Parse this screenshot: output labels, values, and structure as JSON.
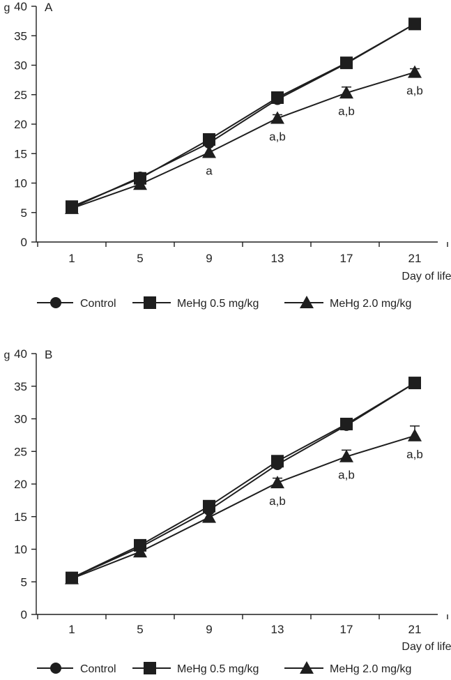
{
  "chart_data": [
    {
      "type": "line",
      "panel_label": "A",
      "ylabel": "g",
      "xlabel": "Day of life",
      "categories": [
        "1",
        "5",
        "9",
        "13",
        "17",
        "21"
      ],
      "ylim": [
        0,
        40
      ],
      "yticks": [
        0,
        5,
        10,
        15,
        20,
        25,
        30,
        35,
        40
      ],
      "series": [
        {
          "name": "Control",
          "marker": "circle",
          "values": [
            5.8,
            11.0,
            16.8,
            24.2,
            30.3,
            37.0
          ],
          "errors": [
            0,
            0,
            0,
            0,
            0,
            0
          ]
        },
        {
          "name": "MeHg 0.5 mg/kg",
          "marker": "square",
          "values": [
            6.0,
            10.8,
            17.4,
            24.5,
            30.4,
            37.0
          ],
          "errors": [
            0,
            0,
            0,
            0,
            0,
            0
          ]
        },
        {
          "name": "MeHg 2.0 mg/kg",
          "marker": "triangle",
          "values": [
            5.7,
            9.8,
            15.2,
            21.0,
            25.3,
            28.8
          ],
          "errors": [
            0,
            0,
            0,
            0.6,
            1.0,
            0.6
          ]
        }
      ],
      "annotations": [
        {
          "x": "9",
          "text": "a"
        },
        {
          "x": "13",
          "text": "a,b"
        },
        {
          "x": "17",
          "text": "a,b"
        },
        {
          "x": "21",
          "text": "a,b"
        }
      ]
    },
    {
      "type": "line",
      "panel_label": "B",
      "ylabel": "g",
      "xlabel": "Day of life",
      "categories": [
        "1",
        "5",
        "9",
        "13",
        "17",
        "21"
      ],
      "ylim": [
        0,
        40
      ],
      "yticks": [
        0,
        5,
        10,
        15,
        20,
        25,
        30,
        35,
        40
      ],
      "series": [
        {
          "name": "Control",
          "marker": "circle",
          "values": [
            5.6,
            10.3,
            16.0,
            23.0,
            29.0,
            35.5
          ],
          "errors": [
            0,
            0,
            0,
            0,
            0,
            0
          ]
        },
        {
          "name": "MeHg 0.5 mg/kg",
          "marker": "square",
          "values": [
            5.6,
            10.6,
            16.6,
            23.5,
            29.2,
            35.5
          ],
          "errors": [
            0,
            0,
            0,
            0,
            0,
            0
          ]
        },
        {
          "name": "MeHg 2.0 mg/kg",
          "marker": "triangle",
          "values": [
            5.5,
            9.6,
            14.9,
            20.2,
            24.2,
            27.4
          ],
          "errors": [
            0,
            0,
            0,
            0.7,
            1.0,
            1.5
          ]
        }
      ],
      "annotations": [
        {
          "x": "13",
          "text": "a,b"
        },
        {
          "x": "17",
          "text": "a,b"
        },
        {
          "x": "21",
          "text": "a,b"
        }
      ]
    }
  ]
}
